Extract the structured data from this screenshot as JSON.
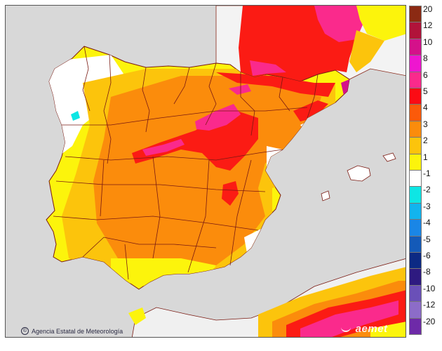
{
  "credit": {
    "symbol": "©",
    "text": "Agencia Estatal de Meteorología"
  },
  "logo": {
    "text": "aemet"
  },
  "legend": {
    "items": [
      {
        "label": "20",
        "color": "#8b2a13"
      },
      {
        "label": "12",
        "color": "#b1133a"
      },
      {
        "label": "10",
        "color": "#d4118a"
      },
      {
        "label": "8",
        "color": "#ee16cf"
      },
      {
        "label": "6",
        "color": "#fa2a8c"
      },
      {
        "label": "5",
        "color": "#fb0b14"
      },
      {
        "label": "4",
        "color": "#fb5a0a"
      },
      {
        "label": "3",
        "color": "#fb8c0c"
      },
      {
        "label": "2",
        "color": "#fcc40c"
      },
      {
        "label": "1",
        "color": "#fcf40c"
      },
      {
        "label": "-1",
        "color": "#ffffff"
      },
      {
        "label": "-2",
        "color": "#0ee6e4"
      },
      {
        "label": "-3",
        "color": "#12b4ee"
      },
      {
        "label": "-4",
        "color": "#1a86e6"
      },
      {
        "label": "-5",
        "color": "#145ab8"
      },
      {
        "label": "-6",
        "color": "#0c2a84"
      },
      {
        "label": "-8",
        "color": "#2e1a80"
      },
      {
        "label": "-10",
        "color": "#6a50b8"
      },
      {
        "label": "-12",
        "color": "#8c6cc8"
      },
      {
        "label": "-20",
        "color": "#6e2aa8"
      }
    ]
  },
  "colors": {
    "sea": "#d8d8d8",
    "land_outside": "#f0f0f0",
    "borders": "#7a1a12",
    "coast": "#7a1a12"
  }
}
